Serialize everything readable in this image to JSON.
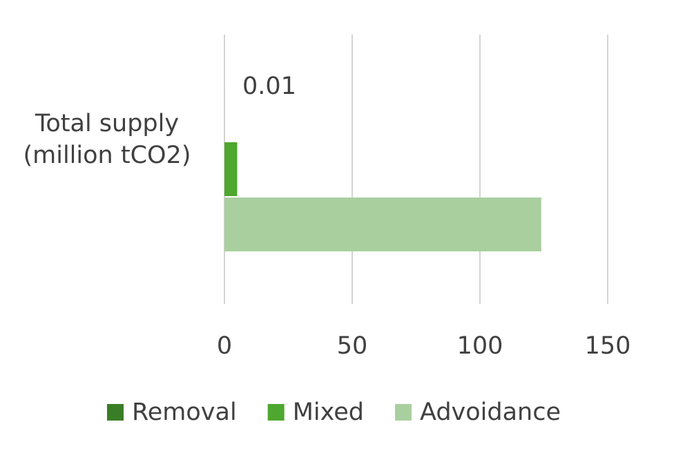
{
  "chart_data": {
    "type": "hbar",
    "categories": [
      "Total supply (million tCO2)"
    ],
    "series": [
      {
        "name": "Removal",
        "color": "#3a7d27",
        "values": [
          0.01
        ],
        "data_labels": true
      },
      {
        "name": "Mixed",
        "color": "#4ea72e",
        "values": [
          5
        ]
      },
      {
        "name": "Advoidance",
        "color": "#a9cf9f",
        "values": [
          124
        ]
      }
    ],
    "xlim": [
      0,
      150
    ],
    "xticks": [
      0,
      50,
      100,
      150
    ],
    "grid": true,
    "legend": "bottom"
  }
}
